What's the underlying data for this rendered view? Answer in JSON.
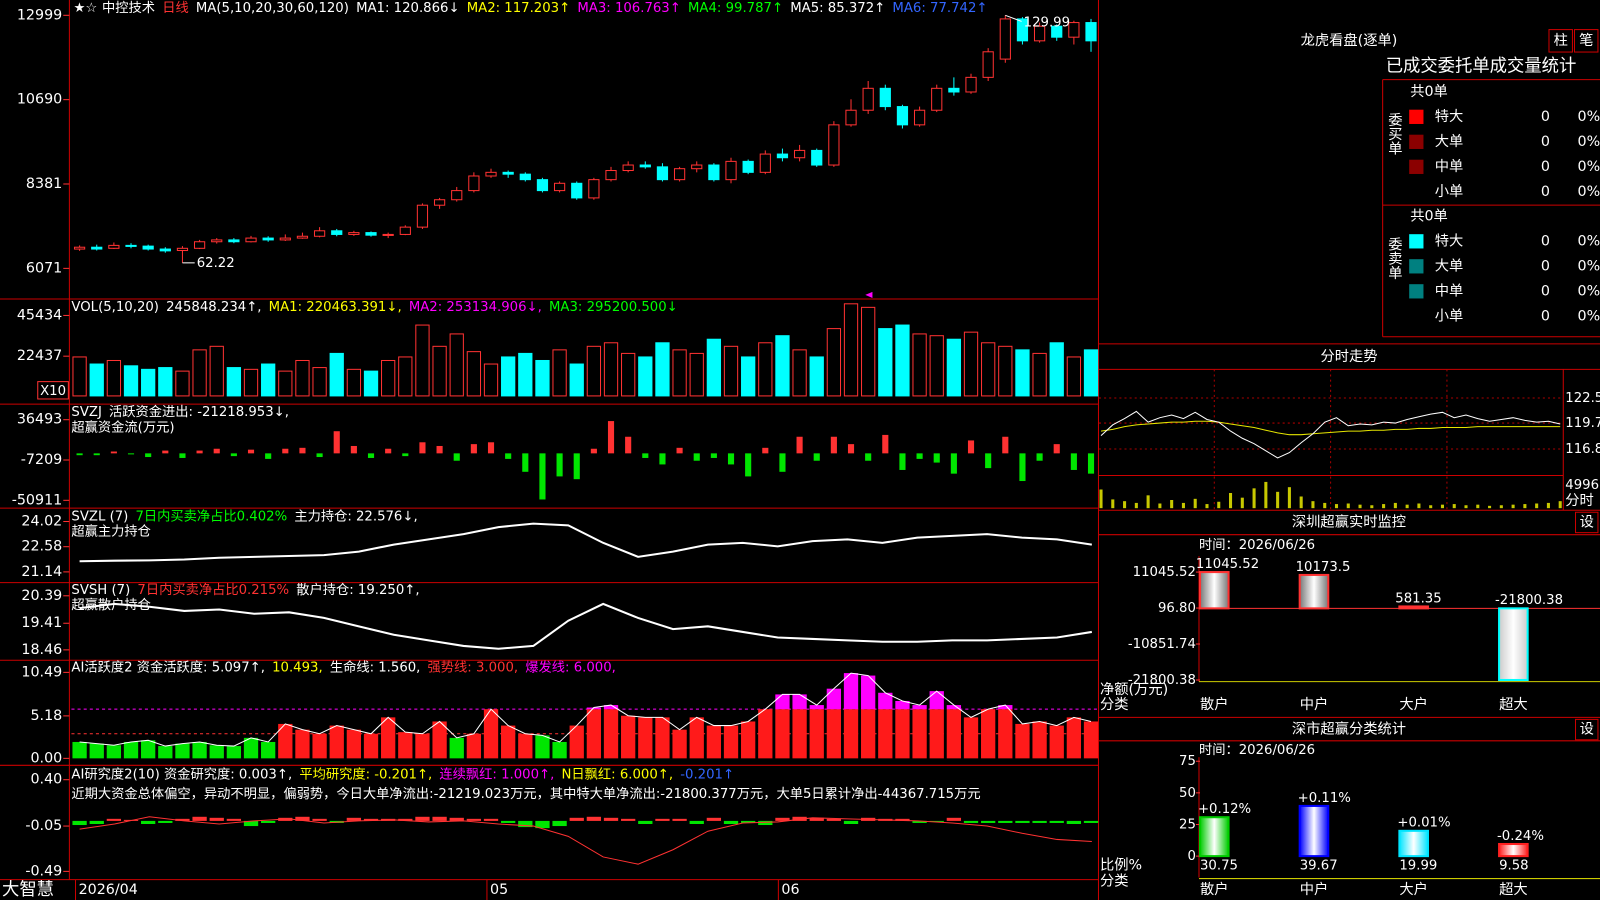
{
  "kline": {
    "header": [
      {
        "text": "中控技术",
        "color": "#ffffff"
      },
      {
        "text": "日线",
        "color": "#ff3232"
      },
      {
        "text": "MA(5,10,20,30,60,120)",
        "color": "#ffffff"
      },
      {
        "text": "MA1: 120.866↓",
        "color": "#ffffff"
      },
      {
        "text": "MA2: 117.203↑",
        "color": "#ffff00"
      },
      {
        "text": "MA3: 106.763↑",
        "color": "#ff00ff"
      },
      {
        "text": "MA4: 99.787↑",
        "color": "#00ff00"
      },
      {
        "text": "MA5: 85.372↑",
        "color": "#ffffff"
      },
      {
        "text": "MA6: 77.742↑",
        "color": "#3366ff"
      }
    ],
    "ylim": [
      5261,
      13362
    ],
    "yticks": [
      6071,
      8381,
      10690,
      12999
    ],
    "high_label": "129.99",
    "low_label": "62.22",
    "dates": [
      "2026/04",
      null,
      null,
      null,
      null,
      null,
      null,
      null,
      null,
      null,
      null,
      null,
      null,
      null,
      null,
      null,
      null,
      null,
      null,
      null,
      null,
      null,
      null,
      null,
      "05",
      null,
      null,
      null,
      null,
      null,
      null,
      null,
      null,
      null,
      null,
      null,
      null,
      null,
      null,
      null,
      null,
      "06",
      null,
      null,
      null,
      null,
      null,
      null,
      null,
      null,
      null,
      null,
      null,
      null,
      null,
      null,
      null,
      null,
      null,
      null
    ],
    "candles": {
      "open": [
        6600,
        6650,
        6620,
        6700,
        6680,
        6600,
        6560,
        6620,
        6800,
        6850,
        6800,
        6900,
        6850,
        6900,
        6950,
        7100,
        7000,
        7050,
        6980,
        7000,
        7200,
        7800,
        7950,
        8200,
        8600,
        8700,
        8650,
        8500,
        8200,
        8400,
        8000,
        8500,
        8750,
        8900,
        8850,
        8500,
        8800,
        8900,
        8500,
        9000,
        8700,
        9200,
        9100,
        9300,
        8900,
        10000,
        10400,
        11000,
        10500,
        10000,
        10400,
        11000,
        10900,
        11300,
        11800,
        12900,
        12300,
        12700,
        12400,
        12800
      ],
      "close": [
        6650,
        6600,
        6700,
        6680,
        6600,
        6550,
        6620,
        6800,
        6850,
        6800,
        6900,
        6850,
        6900,
        6950,
        7100,
        7000,
        7050,
        6980,
        7000,
        7200,
        7800,
        7950,
        8200,
        8600,
        8700,
        8650,
        8500,
        8200,
        8400,
        8000,
        8500,
        8750,
        8900,
        8850,
        8500,
        8800,
        8900,
        8500,
        9000,
        8700,
        9200,
        9100,
        9300,
        8900,
        10000,
        10400,
        11000,
        10500,
        10000,
        10400,
        11000,
        10900,
        11300,
        12000,
        12900,
        12300,
        12700,
        12400,
        12800,
        12300
      ],
      "high": [
        6700,
        6720,
        6780,
        6760,
        6720,
        6650,
        6680,
        6850,
        6900,
        6900,
        6960,
        6950,
        7000,
        7050,
        7200,
        7150,
        7100,
        7080,
        7050,
        7250,
        7850,
        8000,
        8300,
        8700,
        8800,
        8750,
        8700,
        8550,
        8450,
        8450,
        8550,
        8850,
        9000,
        9000,
        8950,
        8850,
        9000,
        8950,
        9100,
        9050,
        9300,
        9350,
        9450,
        9350,
        10100,
        10700,
        11200,
        11100,
        10550,
        10500,
        11100,
        11300,
        11400,
        12100,
        12999,
        12950,
        12800,
        12750,
        12850,
        12900
      ],
      "low": [
        6550,
        6560,
        6600,
        6620,
        6560,
        6500,
        6222,
        6600,
        6750,
        6760,
        6780,
        6800,
        6820,
        6880,
        6920,
        6950,
        6960,
        6940,
        6900,
        6980,
        7150,
        7700,
        7900,
        8150,
        8550,
        8550,
        8450,
        8150,
        8150,
        7950,
        7950,
        8450,
        8700,
        8800,
        8450,
        8450,
        8700,
        8450,
        8400,
        8650,
        8650,
        9000,
        9000,
        8850,
        8850,
        9950,
        10300,
        10400,
        9900,
        9950,
        10350,
        10800,
        10850,
        11200,
        11700,
        12200,
        12250,
        12300,
        12200,
        12000
      ]
    }
  },
  "volume": {
    "header": [
      {
        "text": "VOL(5,10,20)",
        "color": "#ffffff"
      },
      {
        "text": "245848.234↑,",
        "color": "#ffffff"
      },
      {
        "text": "MA1: 220463.391↓,",
        "color": "#ffff00"
      },
      {
        "text": "MA2: 253134.906↓,",
        "color": "#ff00ff"
      },
      {
        "text": "MA3: 295200.500↓",
        "color": "#00ff00"
      }
    ],
    "unit": "X10",
    "ylim": [
      0,
      53000
    ],
    "yticks": [
      22437,
      45434
    ],
    "values": [
      22000,
      18000,
      20000,
      17000,
      15000,
      16000,
      14000,
      26000,
      28000,
      16000,
      15000,
      18000,
      14000,
      20000,
      16000,
      24000,
      15000,
      14000,
      20000,
      22000,
      40000,
      28000,
      35000,
      25000,
      18000,
      22000,
      24000,
      20000,
      26000,
      18000,
      28000,
      30000,
      24000,
      22000,
      30000,
      26000,
      24000,
      32000,
      28000,
      22000,
      30000,
      34000,
      26000,
      22000,
      38000,
      52000,
      50000,
      38000,
      40000,
      35000,
      34000,
      32000,
      36000,
      30000,
      28000,
      26000,
      24000,
      30000,
      22000,
      26000
    ]
  },
  "flow": {
    "header": [
      {
        "text": "SVZJ",
        "color": "#ffffff"
      },
      {
        "text": "活跃资金进出: -21218.953↓,",
        "color": "#ffffff"
      }
    ],
    "subtitle": "超赢资金流(万元)",
    "ylim": [
      -55000,
      49000
    ],
    "yticks": [
      -50911,
      -7209,
      36493
    ],
    "values": [
      -2000,
      -2000,
      2000,
      -1000,
      -4000,
      3000,
      -5000,
      3000,
      5000,
      -3000,
      4000,
      -6000,
      5000,
      6000,
      -4000,
      24000,
      8000,
      -5000,
      5000,
      -3000,
      12000,
      8000,
      -8000,
      10000,
      12000,
      -6000,
      -20000,
      -50000,
      -25000,
      -28000,
      5000,
      35000,
      18000,
      -5000,
      -12000,
      6000,
      -8000,
      -5000,
      -12000,
      -25000,
      6000,
      -20000,
      18000,
      -8000,
      18000,
      10000,
      -8000,
      20000,
      -18000,
      -6000,
      -10000,
      -22000,
      14000,
      -16000,
      18000,
      -30000,
      -8000,
      10000,
      -18000,
      -22000
    ]
  },
  "svzl": {
    "header": [
      {
        "text": "SVZL (7)",
        "color": "#ffffff"
      },
      {
        "text": "7日内买卖净占比0.402%",
        "color": "#00ff00"
      },
      {
        "text": "主力持仓: 22.576↓,",
        "color": "#ffffff"
      }
    ],
    "subtitle": "超赢主力持仓",
    "ylim": [
      20.7,
      24.55
    ],
    "yticks": [
      21.14,
      22.58,
      24.02
    ],
    "values": [
      21.75,
      21.78,
      21.8,
      21.85,
      21.95,
      22.0,
      22.05,
      22.1,
      22.3,
      22.7,
      23.0,
      23.3,
      23.7,
      23.9,
      23.8,
      22.8,
      22.0,
      22.3,
      22.7,
      22.8,
      22.6,
      22.9,
      23.0,
      22.8,
      23.1,
      23.2,
      23.3,
      23.1,
      23.0,
      22.7
    ]
  },
  "svsh": {
    "header": [
      {
        "text": "SVSH (7)",
        "color": "#ffffff"
      },
      {
        "text": "7日内买卖净占比0.215%",
        "color": "#ff3232"
      },
      {
        "text": "散户持仓: 19.250↑,",
        "color": "#ffffff"
      }
    ],
    "subtitle": "超赢散户持仓",
    "ylim": [
      18.2,
      20.75
    ],
    "yticks": [
      18.46,
      19.41,
      20.39
    ],
    "values": [
      19.95,
      20.1,
      20.0,
      19.85,
      19.9,
      19.75,
      19.8,
      19.6,
      19.3,
      19.0,
      18.8,
      18.6,
      18.5,
      18.6,
      19.5,
      20.1,
      19.6,
      19.2,
      19.3,
      19.1,
      18.9,
      18.85,
      18.8,
      18.75,
      18.75,
      18.8,
      18.8,
      18.85,
      18.9,
      19.1
    ]
  },
  "ai_active": {
    "header": [
      {
        "text": "AI活跃度2 资金活跃度: 5.097↑,",
        "color": "#ffffff"
      },
      {
        "text": "10.493,",
        "color": "#ffff00"
      },
      {
        "text": "生命线: 1.560,",
        "color": "#ffffff"
      },
      {
        "text": "强势线: 3.000,",
        "color": "#ff3232"
      },
      {
        "text": "爆发线: 6.000,",
        "color": "#ff00ff"
      }
    ],
    "ylim": [
      -0.35,
      11.6
    ],
    "yticks": [
      {
        "value": 0,
        "label": "0.00"
      },
      5.18,
      10.49
    ],
    "strong_line": 3,
    "burst_line": 6,
    "values": [
      2,
      1.8,
      1.6,
      2,
      2.2,
      1.5,
      1.8,
      2,
      1.6,
      1.5,
      2.5,
      2,
      4.2,
      3.5,
      3,
      4,
      3.5,
      3,
      5,
      3.2,
      3,
      4.5,
      2.5,
      3,
      6,
      4,
      3,
      2.8,
      2,
      4,
      6.2,
      6.5,
      5.2,
      5,
      5,
      3.5,
      5,
      4,
      4,
      4.5,
      6,
      7.8,
      7.8,
      6.5,
      8.5,
      10.4,
      10.1,
      8,
      7,
      6.5,
      8.2,
      6.5,
      5,
      6,
      6.5,
      4.2,
      4.5,
      4,
      5,
      4.5
    ]
  },
  "ai_research": {
    "header": [
      {
        "text": "AI研究度2(10) 资金研究度: 0.003↑,",
        "color": "#ffffff"
      },
      {
        "text": "平均研究度: -0.201↑,",
        "color": "#ffff00"
      },
      {
        "text": "连续飘红: 1.000↑,",
        "color": "#ff00ff"
      },
      {
        "text": "N日飘红: 6.000↑,",
        "color": "#ffff00"
      },
      {
        "text": "-0.201↑",
        "color": "#3366ff"
      }
    ],
    "comment": "近期大资金总体偏空，异动不明显，偏弱势，今日大单净流出:-21219.023万元，其中特大单净流出:-21800.377万元，大单5日累计净出-44367.715万元",
    "ylim": [
      -0.55,
      0.52
    ],
    "yticks": [
      -0.49,
      -0.05,
      {
        "value": 0.4,
        "label": "0.40"
      }
    ],
    "bars": [
      -0.04,
      -0.03,
      0.02,
      0.01,
      -0.03,
      -0.02,
      0.02,
      0.04,
      0.03,
      0.02,
      -0.05,
      -0.02,
      0.03,
      0.04,
      0.02,
      -0.02,
      0.03,
      0.02,
      0.02,
      0.02,
      0.04,
      0.04,
      0.03,
      0.02,
      0.02,
      -0.02,
      -0.06,
      -0.07,
      -0.05,
      0.03,
      0.04,
      0.03,
      0.02,
      -0.03,
      0.02,
      0.02,
      -0.03,
      0.03,
      -0.03,
      -0.02,
      -0.04,
      0.03,
      0.04,
      0.03,
      0.02,
      -0.03,
      0.03,
      0.02,
      0.02,
      -0.02,
      -0.01,
      0.03,
      -0.02,
      -0.02,
      -0.02,
      -0.02,
      -0.02,
      -0.02,
      -0.03,
      -0.02
    ],
    "line": [
      -0.08,
      -0.03,
      0.04,
      0.0,
      -0.03,
      0.0,
      0.02,
      -0.02,
      0.0,
      0.01,
      -0.01,
      0.0,
      -0.03,
      -0.05,
      -0.15,
      -0.35,
      -0.42,
      -0.28,
      -0.1,
      -0.02,
      -0.01,
      0.03,
      0.02,
      0.01,
      0.0,
      -0.02,
      -0.05,
      -0.12,
      -0.18,
      -0.2
    ]
  },
  "brand": "大智慧",
  "dragon": {
    "title": "龙虎看盘(逐单)",
    "buttons": [
      "柱",
      "笔"
    ],
    "heading": "已成交委托单成交量统计",
    "groups": [
      {
        "side": "委买单",
        "total": "共0单",
        "rows": [
          {
            "name": "特大",
            "count": 0,
            "pct": "0%",
            "color": "#ff0000"
          },
          {
            "name": "大单",
            "count": 0,
            "pct": "0%",
            "color": "#8b0000"
          },
          {
            "name": "中单",
            "count": 0,
            "pct": "0%",
            "color": "#8b0000"
          },
          {
            "name": "小单",
            "count": 0,
            "pct": "0%",
            "color": null
          }
        ]
      },
      {
        "side": "委卖单",
        "total": "共0单",
        "rows": [
          {
            "name": "特大",
            "count": 0,
            "pct": "0%",
            "color": "#00ffff"
          },
          {
            "name": "大单",
            "count": 0,
            "pct": "0%",
            "color": "#008080"
          },
          {
            "name": "中单",
            "count": 0,
            "pct": "0%",
            "color": "#008080"
          },
          {
            "name": "小单",
            "count": 0,
            "pct": "0%",
            "color": null
          }
        ]
      }
    ]
  },
  "intraday": {
    "title": "分时走势",
    "ylim": [
      113.84,
      125.24
    ],
    "yticks": [
      116.8,
      119.7,
      122.5
    ],
    "vol_ylim": [
      0,
      5600
    ],
    "vol_ticks": [
      4996
    ],
    "vol_label": "分时",
    "price": [
      118.3,
      119.5,
      120.2,
      121.0,
      119.8,
      120.3,
      120.6,
      120.2,
      120.9,
      120.1,
      119.8,
      118.8,
      118.0,
      117.4,
      116.6,
      115.8,
      116.4,
      117.5,
      118.5,
      119.8,
      120.3,
      119.4,
      119.6,
      119.5,
      119.8,
      119.7,
      120.1,
      120.4,
      120.7,
      120.9,
      120.3,
      120.6,
      120.2,
      119.9,
      120.1,
      120.3,
      120.0,
      119.8,
      119.9,
      119.6
    ],
    "avg": [
      118.8,
      119.0,
      119.3,
      119.5,
      119.6,
      119.7,
      119.8,
      119.8,
      119.9,
      119.9,
      119.8,
      119.6,
      119.4,
      119.2,
      118.9,
      118.6,
      118.4,
      118.4,
      118.5,
      118.6,
      118.7,
      118.8,
      118.8,
      118.9,
      118.9,
      119.0,
      119.0,
      119.1,
      119.1,
      119.2,
      119.2,
      119.2,
      119.3,
      119.3,
      119.3,
      119.3,
      119.3,
      119.3,
      119.3,
      119.3
    ],
    "volume": [
      3200,
      1500,
      1200,
      900,
      2200,
      800,
      1400,
      900,
      1600,
      700,
      1100,
      2600,
      1800,
      3400,
      4500,
      2800,
      3600,
      2000,
      1200,
      900,
      700,
      800,
      600,
      500,
      700,
      900,
      600,
      800,
      500,
      600,
      700,
      500,
      600,
      400,
      500,
      600,
      700,
      800,
      900,
      1200
    ]
  },
  "sz_monitor": {
    "title": "深圳超赢实时监控",
    "button": "设",
    "time": "时间：2026/06/26",
    "ylabel": "净额(万元)",
    "xlabel": "分类",
    "ylim": [
      -22300,
      15900
    ],
    "yticks": [
      -21800.38,
      -10851.74,
      {
        "value": 96.8,
        "label": "96.80"
      },
      11045.52
    ],
    "categories": [
      "散户",
      "中户",
      "大户",
      "超大"
    ],
    "values": [
      11045.52,
      10173.5,
      581.35,
      -21800.38
    ]
  },
  "sz_class": {
    "title": "深市超赢分类统计",
    "button": "设",
    "time": "时间：2026/06/26",
    "ylabel": "比例%",
    "xlabel": "分类",
    "ylim": [
      0,
      75
    ],
    "yticks": [
      0,
      25,
      50,
      75
    ],
    "categories": [
      "散户",
      "中户",
      "大户",
      "超大"
    ],
    "values": [
      30.75,
      39.67,
      19.99,
      9.58
    ],
    "changes": [
      "+0.12%",
      "+0.11%",
      "+0.01%",
      "-0.24%"
    ],
    "colors": [
      "#00cc00",
      "#0000ff",
      "#00e5ff",
      "#ff2020"
    ]
  }
}
